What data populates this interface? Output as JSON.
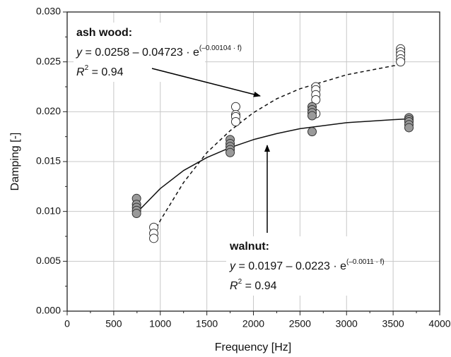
{
  "chart_data": {
    "type": "scatter",
    "x_label": "Frequency [Hz]",
    "y_label": "Damping [-]",
    "xlim": [
      0,
      4000
    ],
    "xticks": [
      0,
      500,
      1000,
      1500,
      2000,
      2500,
      3000,
      3500,
      4000
    ],
    "ylim": [
      0,
      0.03
    ],
    "yticks": [
      {
        "value": 0,
        "label": "0.000"
      },
      {
        "value": 0.005,
        "label": "0.005"
      },
      {
        "value": 0.01,
        "label": "0.010"
      },
      {
        "value": 0.015,
        "label": "0.015"
      },
      {
        "value": 0.02,
        "label": "0.020"
      },
      {
        "value": 0.025,
        "label": "0.025"
      },
      {
        "value": 0.03,
        "label": "0.030"
      }
    ],
    "grid": true,
    "series": [
      {
        "name": "ash wood:",
        "color": "#ffffff",
        "line_style": "dashed",
        "x": [
          930,
          930,
          930,
          1810,
          1810,
          1810,
          1810,
          2670,
          2670,
          2670,
          2670,
          2670,
          3580,
          3580,
          3580,
          3580,
          3580
        ],
        "values": [
          0.0084,
          0.0078,
          0.0073,
          0.0205,
          0.0197,
          0.0195,
          0.019,
          0.0225,
          0.0222,
          0.0217,
          0.0212,
          0.0198,
          0.0263,
          0.026,
          0.0257,
          0.0253,
          0.025
        ],
        "fit": {
          "x": [
            930,
            1000,
            1250,
            1500,
            1750,
            2000,
            2250,
            2500,
            3000,
            3500,
            3580
          ],
          "values": [
            0.0078,
            0.0091,
            0.0129,
            0.0159,
            0.0181,
            0.0199,
            0.0213,
            0.0223,
            0.0237,
            0.0246,
            0.0247
          ]
        },
        "equation": {
          "lhs": "y",
          "rhs": " = 0.0258 – 0.04723 · e",
          "exponent": "(–0.00104 · f)"
        },
        "r2": {
          "symbol": "R",
          "power": "2",
          "value": " = 0.94"
        }
      },
      {
        "name": "walnut:",
        "color": "#9a9a9a",
        "line_style": "solid",
        "x": [
          745,
          745,
          745,
          745,
          745,
          1750,
          1750,
          1750,
          1750,
          1750,
          2630,
          2630,
          2630,
          2630,
          2630,
          3670,
          3670,
          3670,
          3670,
          3670
        ],
        "values": [
          0.0113,
          0.0107,
          0.0104,
          0.0101,
          0.0098,
          0.0172,
          0.0168,
          0.0165,
          0.0162,
          0.0159,
          0.0205,
          0.0202,
          0.0199,
          0.0196,
          0.018,
          0.0194,
          0.0192,
          0.019,
          0.0187,
          0.0184
        ],
        "fit": {
          "x": [
            750,
            1000,
            1250,
            1500,
            1750,
            2000,
            2250,
            2500,
            3000,
            3500,
            3700
          ],
          "values": [
            0.0099,
            0.0123,
            0.0141,
            0.0154,
            0.0164,
            0.0172,
            0.0178,
            0.0183,
            0.0189,
            0.0192,
            0.0193
          ]
        },
        "equation": {
          "lhs": "y",
          "rhs": " = 0.0197 – 0.0223 · e",
          "exponent": "(–0.0011 · f)"
        },
        "r2": {
          "symbol": "R",
          "power": "2",
          "value": " = 0.94"
        }
      }
    ]
  }
}
